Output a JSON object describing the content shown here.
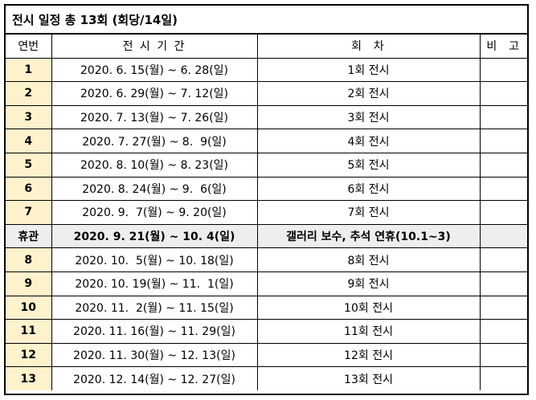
{
  "title": "전시 일정 총 13회 (회당/14일)",
  "headers": {
    "no": "연번",
    "period": "전 시 기 간",
    "round": "회  차",
    "note": "비  고"
  },
  "rows": [
    {
      "no": "1",
      "period": "2020. 6. 15(월) ~ 6. 28(일)",
      "round": "1회 전시",
      "note": ""
    },
    {
      "no": "2",
      "period": "2020. 6. 29(월) ~ 7. 12(일)",
      "round": "2회 전시",
      "note": ""
    },
    {
      "no": "3",
      "period": "2020. 7. 13(월) ~ 7. 26(일)",
      "round": "3회 전시",
      "note": ""
    },
    {
      "no": "4",
      "period": "2020. 7. 27(월) ~ 8.  9(일)",
      "round": "4회 전시",
      "note": ""
    },
    {
      "no": "5",
      "period": "2020. 8. 10(월) ~ 8. 23(일)",
      "round": "5회 전시",
      "note": ""
    },
    {
      "no": "6",
      "period": "2020. 8. 24(월) ~ 9.  6(일)",
      "round": "6회 전시",
      "note": ""
    },
    {
      "no": "7",
      "period": "2020. 9.  7(월) ~ 9. 20(일)",
      "round": "7회 전시",
      "note": ""
    },
    {
      "no": "휴관",
      "period": "2020. 9. 21(월) ~ 10. 4(일)",
      "round": "갤러리 보수, 추석 연휴(10.1~3)",
      "note": ""
    },
    {
      "no": "8",
      "period": "2020. 10.  5(월) ~ 10. 18(일)",
      "round": "8회 전시",
      "note": ""
    },
    {
      "no": "9",
      "period": "2020. 10. 19(월) ~ 11.  1(일)",
      "round": "9회 전시",
      "note": ""
    },
    {
      "no": "10",
      "period": "2020. 11.  2(월) ~ 11. 15(일)",
      "round": "10회 전시",
      "note": ""
    },
    {
      "no": "11",
      "period": "2020. 11. 16(월) ~ 11. 29(일)",
      "round": "11회 전시",
      "note": ""
    },
    {
      "no": "12",
      "period": "2020. 11. 30(월) ~ 12. 13(일)",
      "round": "12회 전시",
      "note": ""
    },
    {
      "no": "13",
      "period": "2020. 12. 14(월) ~ 12. 27(일)",
      "round": "13회 전시",
      "note": ""
    }
  ]
}
